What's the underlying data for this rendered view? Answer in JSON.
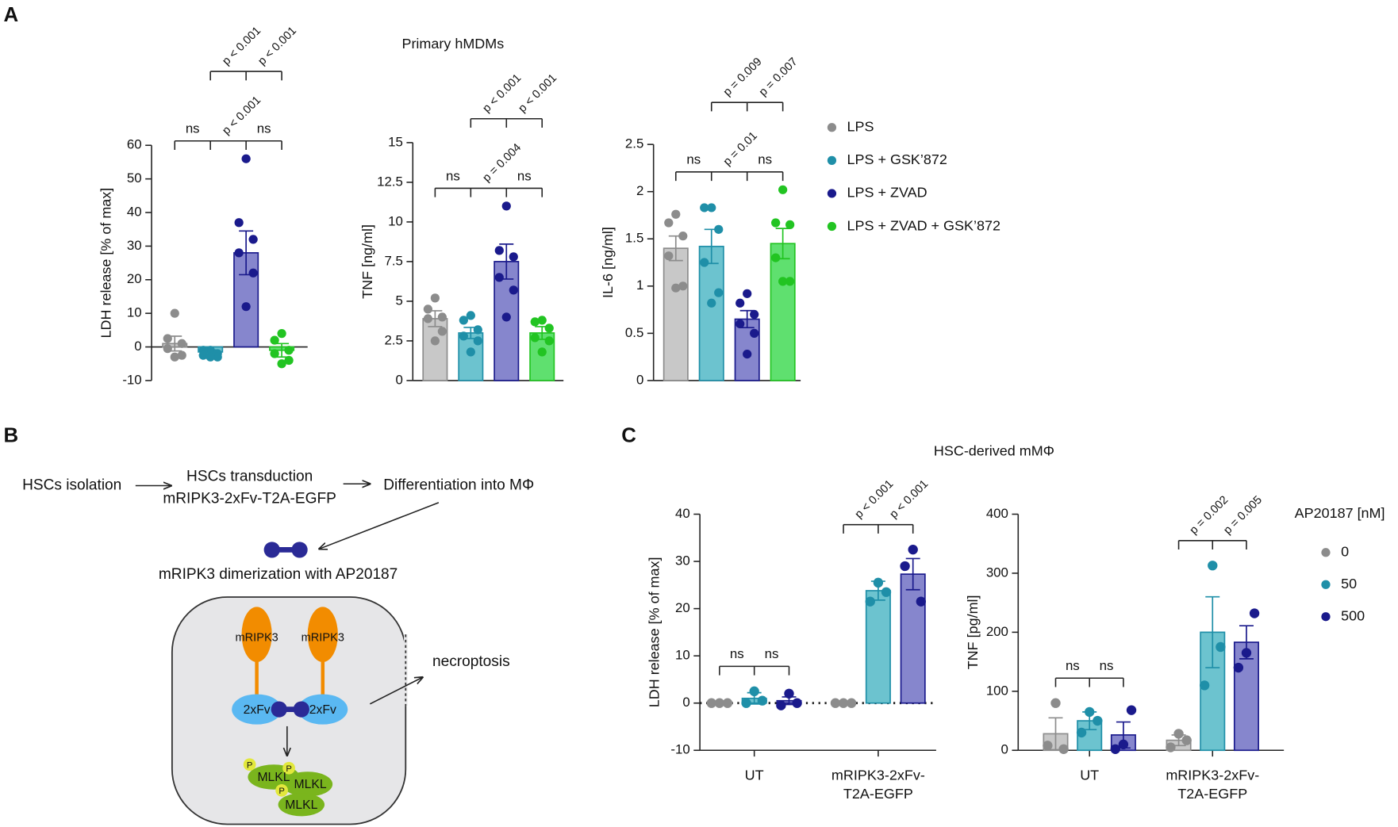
{
  "panel_labels": [
    "A",
    "B",
    "C"
  ],
  "chart_data": [
    {
      "type": "bar",
      "ylabel": "LDH release [% of max]",
      "ylim": [
        -10,
        60
      ],
      "yticks": [
        -10,
        0,
        10,
        20,
        30,
        40,
        50,
        60
      ],
      "x_axis_at_zero": true,
      "series": [
        {
          "color": "#8c8c8c",
          "fill": "#c8c8c8",
          "values": [
            1
          ],
          "errors": [
            2.2
          ],
          "points": [
            [
              10,
              2.5,
              1,
              -0.5,
              -2.5,
              -3
            ]
          ]
        },
        {
          "color": "#1f8fa8",
          "fill": "#6cc3cf",
          "values": [
            -1.5
          ],
          "errors": [
            0.6
          ],
          "points": [
            [
              -1,
              -1,
              -2,
              -2.5,
              -3,
              -3
            ]
          ]
        },
        {
          "color": "#1a1a8c",
          "fill": "#8686cd",
          "values": [
            28
          ],
          "errors": [
            6.5
          ],
          "points": [
            [
              56,
              37,
              32,
              28,
              22,
              12
            ]
          ]
        },
        {
          "color": "#22c422",
          "fill": "#5fe06f",
          "values": [
            -1
          ],
          "errors": [
            2
          ],
          "points": [
            [
              4,
              2,
              -1,
              -2,
              -4,
              -5
            ]
          ]
        }
      ],
      "comparisons_lower": [
        "ns",
        "p < 0.001",
        "ns"
      ],
      "comparisons_upper": [
        "p < 0.001",
        "p < 0.001"
      ]
    },
    {
      "type": "bar",
      "title": "Primary hMDMs",
      "ylabel": "TNF [ng/ml]",
      "ylim": [
        0,
        15
      ],
      "yticks": [
        0,
        2.5,
        5,
        7.5,
        10,
        12.5,
        15
      ],
      "series": [
        {
          "color": "#8c8c8c",
          "fill": "#c8c8c8",
          "values": [
            3.9
          ],
          "errors": [
            0.5
          ],
          "points": [
            [
              5.2,
              4.5,
              4.0,
              3.9,
              3.1,
              2.5
            ]
          ]
        },
        {
          "color": "#1f8fa8",
          "fill": "#6cc3cf",
          "values": [
            3.0
          ],
          "errors": [
            0.35
          ],
          "points": [
            [
              4.1,
              3.8,
              3.2,
              2.8,
              2.5,
              1.8
            ]
          ]
        },
        {
          "color": "#1a1a8c",
          "fill": "#8686cd",
          "values": [
            7.5
          ],
          "errors": [
            1.1
          ],
          "points": [
            [
              11,
              8.2,
              7.8,
              6.5,
              5.7,
              4.0
            ]
          ]
        },
        {
          "color": "#22c422",
          "fill": "#5fe06f",
          "values": [
            3.0
          ],
          "errors": [
            0.4
          ],
          "points": [
            [
              3.8,
              3.7,
              3.3,
              2.7,
              2.5,
              1.8
            ]
          ]
        }
      ],
      "comparisons_lower": [
        "ns",
        "p = 0.004",
        "ns"
      ],
      "comparisons_upper": [
        "p < 0.001",
        "p < 0.001"
      ]
    },
    {
      "type": "bar",
      "ylabel": "IL-6 [ng/ml]",
      "ylim": [
        0,
        2.5
      ],
      "yticks": [
        0,
        0.5,
        1,
        1.5,
        2,
        2.5
      ],
      "series": [
        {
          "name": "LPS",
          "color": "#8c8c8c",
          "fill": "#c8c8c8",
          "values": [
            1.4
          ],
          "errors": [
            0.13
          ],
          "points": [
            [
              1.76,
              1.67,
              1.53,
              1.32,
              1.0,
              0.98
            ]
          ]
        },
        {
          "name": "LPS + GSK’872",
          "color": "#1f8fa8",
          "fill": "#6cc3cf",
          "values": [
            1.42
          ],
          "errors": [
            0.18
          ],
          "points": [
            [
              1.83,
              1.83,
              1.6,
              1.25,
              0.93,
              0.82
            ]
          ]
        },
        {
          "name": "LPS + ZVAD",
          "color": "#1a1a8c",
          "fill": "#8686cd",
          "values": [
            0.65
          ],
          "errors": [
            0.09
          ],
          "points": [
            [
              0.92,
              0.82,
              0.7,
              0.6,
              0.5,
              0.28
            ]
          ]
        },
        {
          "name": "LPS + ZVAD + GSK’872",
          "color": "#22c422",
          "fill": "#5fe06f",
          "values": [
            1.45
          ],
          "errors": [
            0.16
          ],
          "points": [
            [
              2.02,
              1.67,
              1.65,
              1.3,
              1.05,
              1.05
            ]
          ]
        }
      ],
      "comparisons_lower": [
        "ns",
        "p = 0.01",
        "ns"
      ],
      "comparisons_upper": [
        "p = 0.009",
        "p = 0.007"
      ]
    },
    {
      "type": "bar",
      "title": "HSC-derived mMΦ",
      "ylabel": "LDH release [% of max]",
      "categories": [
        "UT",
        "mRIPK3-2xFv-T2A-EGFP"
      ],
      "ylim": [
        -10,
        40
      ],
      "yticks": [
        -10,
        0,
        10,
        20,
        30,
        40
      ],
      "zero_line": "dotted",
      "series": [
        {
          "color": "#8c8c8c",
          "fill": "#c8c8c8",
          "values": [
            0,
            0
          ],
          "errors": [
            0,
            0
          ],
          "points": [
            [
              0,
              0,
              0
            ],
            [
              0,
              0,
              0
            ]
          ]
        },
        {
          "color": "#1f8fa8",
          "fill": "#6cc3cf",
          "values": [
            1,
            23.8
          ],
          "errors": [
            1.2,
            2
          ],
          "points": [
            [
              0,
              2.5,
              0.5
            ],
            [
              21.5,
              25.5,
              23.5
            ]
          ]
        },
        {
          "color": "#1a1a8c",
          "fill": "#8686cd",
          "values": [
            0.5,
            27.3
          ],
          "errors": [
            0.8,
            3.3
          ],
          "points": [
            [
              -0.5,
              2,
              0
            ],
            [
              29,
              32.5,
              21.5
            ]
          ]
        }
      ],
      "comparisons": [
        [
          "ns",
          "ns"
        ],
        [
          "p < 0.001",
          "p < 0.001"
        ]
      ]
    },
    {
      "type": "bar",
      "ylabel": "TNF [pg/ml]",
      "categories": [
        "UT",
        "mRIPK3-2xFv-T2A-EGFP"
      ],
      "ylim": [
        0,
        400
      ],
      "yticks": [
        0,
        100,
        200,
        300,
        400
      ],
      "legend_title": "AP20187 [nM]",
      "series": [
        {
          "name": "0",
          "color": "#8c8c8c",
          "fill": "#c8c8c8",
          "values": [
            28,
            17
          ],
          "errors": [
            27,
            9
          ],
          "points": [
            [
              8,
              80,
              2
            ],
            [
              5,
              28,
              17
            ]
          ]
        },
        {
          "name": "50",
          "color": "#1f8fa8",
          "fill": "#6cc3cf",
          "values": [
            50,
            200
          ],
          "errors": [
            15,
            60
          ],
          "points": [
            [
              30,
              65,
              50
            ],
            [
              110,
              313,
              175
            ]
          ]
        },
        {
          "name": "500",
          "color": "#1a1a8c",
          "fill": "#8686cd",
          "values": [
            26,
            183
          ],
          "errors": [
            22,
            28
          ],
          "points": [
            [
              2,
              10,
              68
            ],
            [
              140,
              165,
              232
            ]
          ]
        }
      ],
      "comparisons": [
        [
          "ns",
          "ns"
        ],
        [
          "p = 0.002",
          "p = 0.005"
        ]
      ]
    }
  ],
  "diagram": {
    "steps": [
      "HSCs isolation",
      "HSCs transduction",
      "Differentiation into MΦ"
    ],
    "construct": "mRIPK3-2xFv-T2A-EGFP",
    "dimerization": "mRIPK3 dimerization with AP20187",
    "cell": {
      "receptors": [
        "mRIPK3",
        "mRIPK3"
      ],
      "domains": [
        "2xFv",
        "2xFv"
      ],
      "substrates": [
        "MLKL",
        "MLKL",
        "MLKL"
      ],
      "phospho": [
        "P",
        "P",
        "P"
      ]
    },
    "outcome": "necroptosis"
  }
}
